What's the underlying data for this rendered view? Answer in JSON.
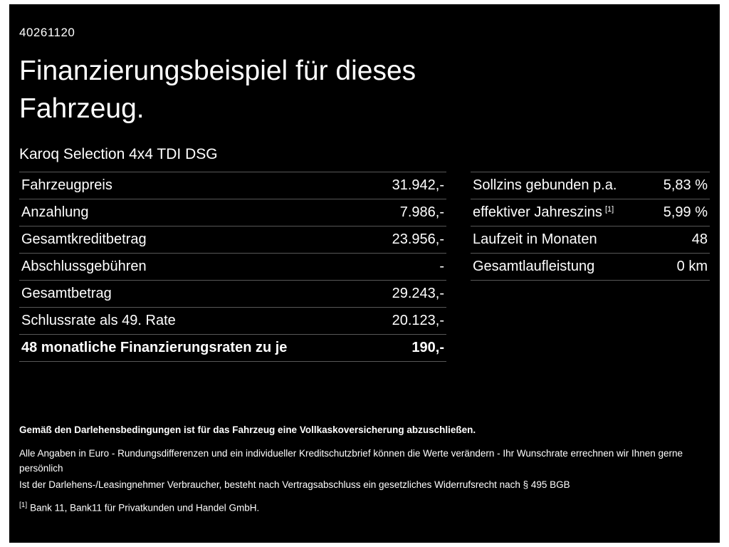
{
  "header": {
    "doc_id": "40261120",
    "title": "Finanzierungsbeispiel für dieses Fahrzeug.",
    "subtitle": "Karoq Selection 4x4 TDI DSG"
  },
  "finance_table": {
    "rows": [
      {
        "label": "Fahrzeugpreis",
        "value": "31.942,-"
      },
      {
        "label": "Anzahlung",
        "value": "7.986,-"
      },
      {
        "label": "Gesamtkreditbetrag",
        "value": "23.956,-"
      },
      {
        "label": "Abschlussgebühren",
        "value": "-"
      },
      {
        "label": "Gesamtbetrag",
        "value": "29.243,-"
      },
      {
        "label": "Schlussrate als 49. Rate",
        "value": "20.123,-"
      },
      {
        "label": "48 monatliche Finanzierungsraten zu je",
        "value": "190,-"
      }
    ]
  },
  "conditions_table": {
    "rows": [
      {
        "label": "Sollzins gebunden p.a.",
        "value": "5,83 %"
      },
      {
        "label": "effektiver Jahreszins",
        "footnote_marker": "[1]",
        "value": "5,99 %"
      },
      {
        "label": "Laufzeit in Monaten",
        "value": "48"
      },
      {
        "label": "Gesamtlaufleistung",
        "value": "0 km"
      }
    ]
  },
  "footer": {
    "bold_note": "Gemäß den Darlehensbedingungen ist für das Fahrzeug eine Vollkaskoversicherung abzuschließen.",
    "note1": "Alle Angaben in Euro - Rundungsdifferenzen und ein individueller Kreditschutzbrief können die Werte verändern - Ihr Wunschrate errechnen wir Ihnen gerne persönlich",
    "note2": "Ist der Darlehens-/Leasingnehmer Verbraucher, besteht nach Vertragsabschluss ein gesetzliches Widerrufsrecht nach § 495 BGB",
    "footnote_marker": "[1]",
    "footnote_text": "Bank 11, Bank11 für Privatkunden und Handel GmbH."
  },
  "colors": {
    "background": "#000000",
    "text": "#ffffff",
    "divider": "#585858"
  }
}
